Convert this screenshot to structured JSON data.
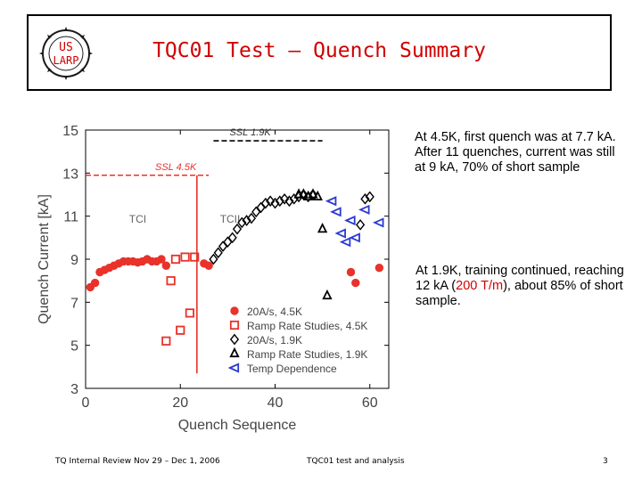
{
  "header": {
    "title": "TQC01 Test – Quench Summary",
    "logo_line1": "US",
    "logo_line2": "LARP"
  },
  "notes": {
    "note1": "At 4.5K, first quench was at 7.7 kA.  After 11 quenches, current was still at 9 kA, 70% of short sample",
    "note2_before": "At 1.9K, training continued, reaching 12 kA (",
    "note2_highlight": "200 T/m",
    "note2_after": "), about 85% of short sample."
  },
  "footer": {
    "left": "TQ Internal Review Nov 29 – Dec 1, 2006",
    "center": "TQC01 test and analysis",
    "page": "3"
  },
  "colors": {
    "red": "#e8322a",
    "blue": "#2a3ad0",
    "black": "#000000",
    "title_red": "#d00000"
  },
  "chart_data": {
    "type": "scatter",
    "xlabel": "Quench Sequence",
    "ylabel": "Quench Current [kA]",
    "xlim": [
      0,
      64
    ],
    "ylim": [
      3,
      15
    ],
    "xticks": [
      0,
      20,
      40,
      60
    ],
    "yticks": [
      3,
      5,
      7,
      9,
      11,
      13,
      15
    ],
    "grid": false,
    "legend_position": "bottom-right",
    "reference_lines": [
      {
        "label": "SSL 1.9K",
        "y": 14.5,
        "x_start": 27,
        "x_end": 50,
        "color": "#000000"
      },
      {
        "label": "SSL 4.5K",
        "y": 12.9,
        "x_start": 0,
        "x_end": 26,
        "color": "#e8322a"
      }
    ],
    "vertical_line": {
      "x": 23.5,
      "y_start": 3.7,
      "y_end": 12.9,
      "color": "#e8322a"
    },
    "annotations": [
      {
        "text": "TCI",
        "x": 11,
        "y": 10.7
      },
      {
        "text": "TCII",
        "x": 30.5,
        "y": 10.7
      }
    ],
    "series": [
      {
        "name": "20A/s, 4.5K",
        "marker": "circle",
        "color": "#e8322a",
        "points": [
          [
            1,
            7.7
          ],
          [
            2,
            7.9
          ],
          [
            3,
            8.4
          ],
          [
            4,
            8.5
          ],
          [
            5,
            8.6
          ],
          [
            6,
            8.7
          ],
          [
            7,
            8.8
          ],
          [
            8,
            8.9
          ],
          [
            9,
            8.9
          ],
          [
            10,
            8.9
          ],
          [
            11,
            8.85
          ],
          [
            12,
            8.9
          ],
          [
            13,
            9.0
          ],
          [
            14,
            8.9
          ],
          [
            15,
            8.9
          ],
          [
            16,
            9.0
          ],
          [
            17,
            8.7
          ],
          [
            25,
            8.8
          ],
          [
            26,
            8.7
          ],
          [
            56,
            8.4
          ],
          [
            57,
            7.9
          ],
          [
            62,
            8.6
          ]
        ]
      },
      {
        "name": "Ramp Rate Studies, 4.5K",
        "marker": "square",
        "color": "#e8322a",
        "points": [
          [
            17,
            5.2
          ],
          [
            18,
            8.0
          ],
          [
            19,
            9.0
          ],
          [
            20,
            5.7
          ],
          [
            21,
            9.1
          ],
          [
            22,
            6.5
          ],
          [
            23,
            9.1
          ]
        ]
      },
      {
        "name": "20A/s, 1.9K",
        "marker": "diamond",
        "color": "#000000",
        "points": [
          [
            27,
            9.0
          ],
          [
            28,
            9.3
          ],
          [
            29,
            9.6
          ],
          [
            30,
            9.8
          ],
          [
            31,
            10.0
          ],
          [
            32,
            10.4
          ],
          [
            33,
            10.7
          ],
          [
            34,
            10.8
          ],
          [
            35,
            10.9
          ],
          [
            36,
            11.2
          ],
          [
            37,
            11.4
          ],
          [
            38,
            11.6
          ],
          [
            39,
            11.7
          ],
          [
            40,
            11.6
          ],
          [
            41,
            11.7
          ],
          [
            42,
            11.8
          ],
          [
            43,
            11.7
          ],
          [
            44,
            11.8
          ],
          [
            45,
            11.9
          ],
          [
            46,
            12.0
          ],
          [
            47,
            11.9
          ],
          [
            48,
            12.0
          ],
          [
            58,
            10.6
          ],
          [
            59,
            11.8
          ],
          [
            60,
            11.9
          ]
        ]
      },
      {
        "name": "Ramp Rate Studies, 1.9K",
        "marker": "triangle-up",
        "color": "#000000",
        "points": [
          [
            45,
            12.0
          ],
          [
            46,
            12.0
          ],
          [
            47,
            11.9
          ],
          [
            48,
            12.0
          ],
          [
            49,
            11.9
          ],
          [
            50,
            10.4
          ],
          [
            51,
            7.3
          ]
        ]
      },
      {
        "name": "Temp Dependence",
        "marker": "triangle-left",
        "color": "#2a3ad0",
        "points": [
          [
            52,
            11.7
          ],
          [
            53,
            11.2
          ],
          [
            54,
            10.2
          ],
          [
            55,
            9.8
          ],
          [
            56,
            10.8
          ],
          [
            57,
            10.0
          ],
          [
            59,
            11.3
          ],
          [
            62,
            10.7
          ]
        ]
      }
    ]
  }
}
